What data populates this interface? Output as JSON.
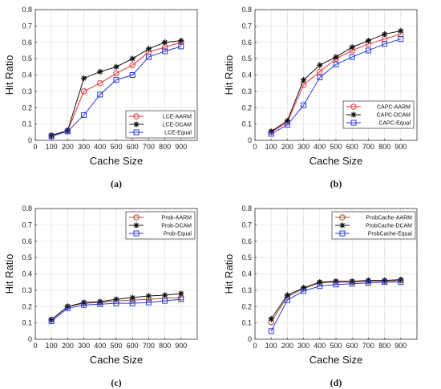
{
  "chart_data": [
    {
      "type": "line",
      "panel_label": "(a)",
      "xlabel": "Cache Size",
      "ylabel": "Hit  Ratio",
      "xlim": [
        0,
        1000
      ],
      "ylim": [
        0,
        0.8
      ],
      "xticks": [
        "0",
        "100",
        "200",
        "300",
        "400",
        "500",
        "600",
        "700",
        "800",
        "900"
      ],
      "yticks": [
        "0",
        "0.1",
        "0.2",
        "0.3",
        "0.4",
        "0.5",
        "0.6",
        "0.7",
        "0.8"
      ],
      "grid": true,
      "legend_position": "bottom-right",
      "x": [
        100,
        200,
        300,
        400,
        500,
        600,
        700,
        800,
        900
      ],
      "series": [
        {
          "name": "LCE-AARM",
          "color": "#e8333a",
          "marker": "circle",
          "values": [
            0.03,
            0.06,
            0.3,
            0.35,
            0.41,
            0.46,
            0.54,
            0.57,
            0.6
          ]
        },
        {
          "name": "LCE-DCAM",
          "color": "#111111",
          "marker": "star",
          "values": [
            0.03,
            0.06,
            0.38,
            0.42,
            0.45,
            0.5,
            0.56,
            0.6,
            0.61
          ]
        },
        {
          "name": "LCE-Equal",
          "color": "#2a3ad6",
          "marker": "square",
          "values": [
            0.025,
            0.055,
            0.155,
            0.28,
            0.37,
            0.4,
            0.51,
            0.545,
            0.575
          ]
        }
      ]
    },
    {
      "type": "line",
      "panel_label": "(b)",
      "xlabel": "Cache Size",
      "ylabel": "Hit  Ratio",
      "xlim": [
        0,
        1000
      ],
      "ylim": [
        0,
        0.8
      ],
      "xticks": [
        "0",
        "100",
        "200",
        "300",
        "400",
        "500",
        "600",
        "700",
        "800",
        "900"
      ],
      "yticks": [
        "0",
        "0.1",
        "0.2",
        "0.3",
        "0.4",
        "0.5",
        "0.6",
        "0.7",
        "0.8"
      ],
      "grid": true,
      "legend_position": "bottom-right",
      "x": [
        100,
        200,
        300,
        400,
        500,
        600,
        700,
        800,
        900
      ],
      "series": [
        {
          "name": "CAPC-AARM",
          "color": "#e8333a",
          "marker": "circle",
          "values": [
            0.05,
            0.11,
            0.34,
            0.42,
            0.5,
            0.55,
            0.59,
            0.62,
            0.65
          ]
        },
        {
          "name": "CAPC-DCAM",
          "color": "#111111",
          "marker": "star",
          "values": [
            0.055,
            0.12,
            0.37,
            0.46,
            0.51,
            0.57,
            0.61,
            0.65,
            0.67
          ]
        },
        {
          "name": "CAPC-Equal",
          "color": "#2a3ad6",
          "marker": "square",
          "values": [
            0.04,
            0.095,
            0.215,
            0.385,
            0.465,
            0.51,
            0.55,
            0.59,
            0.62
          ]
        }
      ]
    },
    {
      "type": "line",
      "panel_label": "(c)",
      "xlabel": "Cache Size",
      "ylabel": "Hit  Ratio",
      "xlim": [
        0,
        1000
      ],
      "ylim": [
        0,
        0.8
      ],
      "xticks": [
        "0",
        "100",
        "200",
        "300",
        "400",
        "500",
        "600",
        "700",
        "800",
        "900"
      ],
      "yticks": [
        "0",
        "0.1",
        "0.2",
        "0.3",
        "0.4",
        "0.5",
        "0.6",
        "0.7",
        "0.8"
      ],
      "grid": true,
      "legend_position": "top-right",
      "x": [
        100,
        200,
        300,
        400,
        500,
        600,
        700,
        800,
        900
      ],
      "series": [
        {
          "name": "Prob-AARM",
          "color": "#a0522d",
          "marker": "circle",
          "values": [
            0.12,
            0.2,
            0.22,
            0.225,
            0.235,
            0.24,
            0.245,
            0.25,
            0.255
          ]
        },
        {
          "name": "Prob-DCAM",
          "color": "#111111",
          "marker": "star",
          "values": [
            0.12,
            0.2,
            0.225,
            0.23,
            0.245,
            0.255,
            0.265,
            0.27,
            0.28
          ]
        },
        {
          "name": "Prob-Equal",
          "color": "#2a3ad6",
          "marker": "square",
          "values": [
            0.11,
            0.19,
            0.21,
            0.215,
            0.22,
            0.22,
            0.225,
            0.235,
            0.245
          ]
        }
      ]
    },
    {
      "type": "line",
      "panel_label": "(d)",
      "xlabel": "Cache Size",
      "ylabel": "Hit  Ratio",
      "xlim": [
        0,
        1000
      ],
      "ylim": [
        0,
        0.8
      ],
      "xticks": [
        "0",
        "100",
        "200",
        "300",
        "400",
        "500",
        "600",
        "700",
        "800",
        "900"
      ],
      "yticks": [
        "0",
        "0.1",
        "0.2",
        "0.3",
        "0.4",
        "0.5",
        "0.6",
        "0.7",
        "0.8"
      ],
      "grid": true,
      "legend_position": "top-right",
      "x": [
        100,
        200,
        300,
        400,
        500,
        600,
        700,
        800,
        900
      ],
      "series": [
        {
          "name": "ProbCache-AARM",
          "color": "#a0522d",
          "marker": "circle",
          "values": [
            0.105,
            0.26,
            0.31,
            0.345,
            0.35,
            0.35,
            0.355,
            0.355,
            0.36
          ]
        },
        {
          "name": "ProbCache-DCAM",
          "color": "#111111",
          "marker": "star",
          "values": [
            0.125,
            0.27,
            0.315,
            0.35,
            0.355,
            0.355,
            0.36,
            0.36,
            0.365
          ]
        },
        {
          "name": "ProbCache-Equal",
          "color": "#2a3ad6",
          "marker": "square",
          "values": [
            0.05,
            0.24,
            0.295,
            0.325,
            0.335,
            0.34,
            0.345,
            0.35,
            0.35
          ]
        }
      ]
    }
  ]
}
